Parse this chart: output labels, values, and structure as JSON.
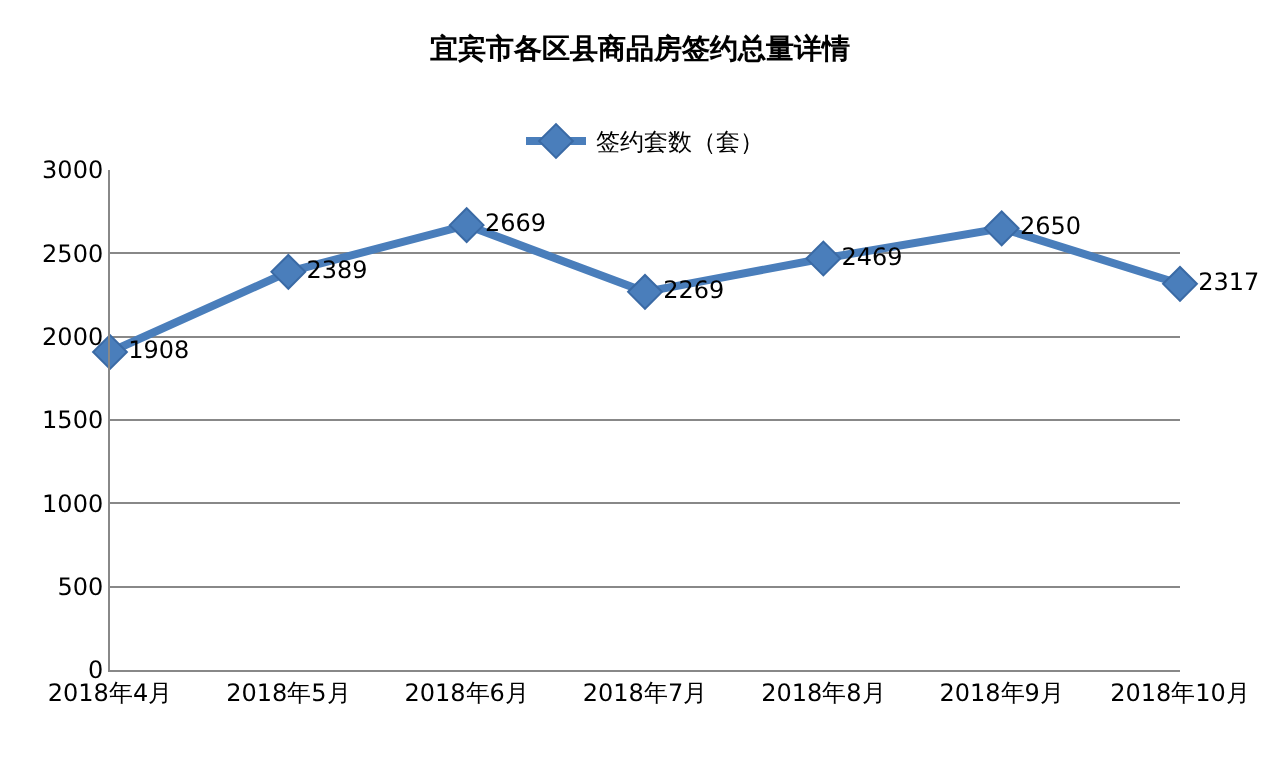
{
  "chart_data": {
    "type": "line",
    "title": "宜宾市各区县商品房签约总量详情",
    "categories": [
      "2018年4月",
      "2018年5月",
      "2018年6月",
      "2018年7月",
      "2018年8月",
      "2018年9月",
      "2018年10月"
    ],
    "series": [
      {
        "name": "签约套数（套）",
        "color": "#4a7ebb",
        "values": [
          1908,
          2389,
          2669,
          2269,
          2469,
          2650,
          2317
        ]
      }
    ],
    "ylim": [
      0,
      3000
    ],
    "yticks": [
      0,
      500,
      1000,
      1500,
      2000,
      2500,
      3000
    ],
    "grid": "y",
    "legend": "top",
    "marker": "diamond",
    "line_style": "solid",
    "data_labels": true
  }
}
